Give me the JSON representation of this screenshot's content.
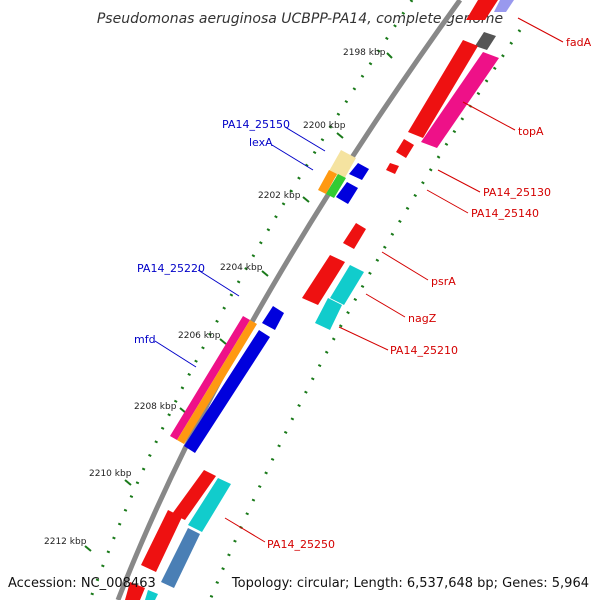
{
  "title": "Pseudomonas aeruginosa UCBPP-PA14, complete genome",
  "accession": "Accession: NC_008463",
  "topology": "Topology: circular; Length: 6,537,648 bp; Genes: 5,964",
  "kbp_labels": [
    "2198 kbp",
    "2200 kbp",
    "2202 kbp",
    "2204 kbp",
    "2206 kbp",
    "2208 kbp",
    "2210 kbp",
    "2212 kbp"
  ],
  "genes_right": [
    "fadA",
    "topA",
    "PA14_25130",
    "PA14_25140",
    "psrA",
    "nagZ",
    "PA14_25210",
    "PA14_25250"
  ],
  "genes_left": [
    "PA14_25150",
    "lexA",
    "PA14_25220",
    "mfd"
  ],
  "colors": {
    "label_right": "#d40000",
    "label_left": "#0000c8",
    "backbone": "#888888",
    "tick": "#1a7a1a",
    "red": "#ee1111",
    "magenta": "#ee1188",
    "blue": "#0000dd",
    "cyan": "#11cccc",
    "orange": "#ff9911",
    "green": "#33cc33",
    "beige": "#f5e3a0",
    "steelblue": "#4a7fb5",
    "grey": "#555555",
    "lavender": "#9999ee"
  }
}
